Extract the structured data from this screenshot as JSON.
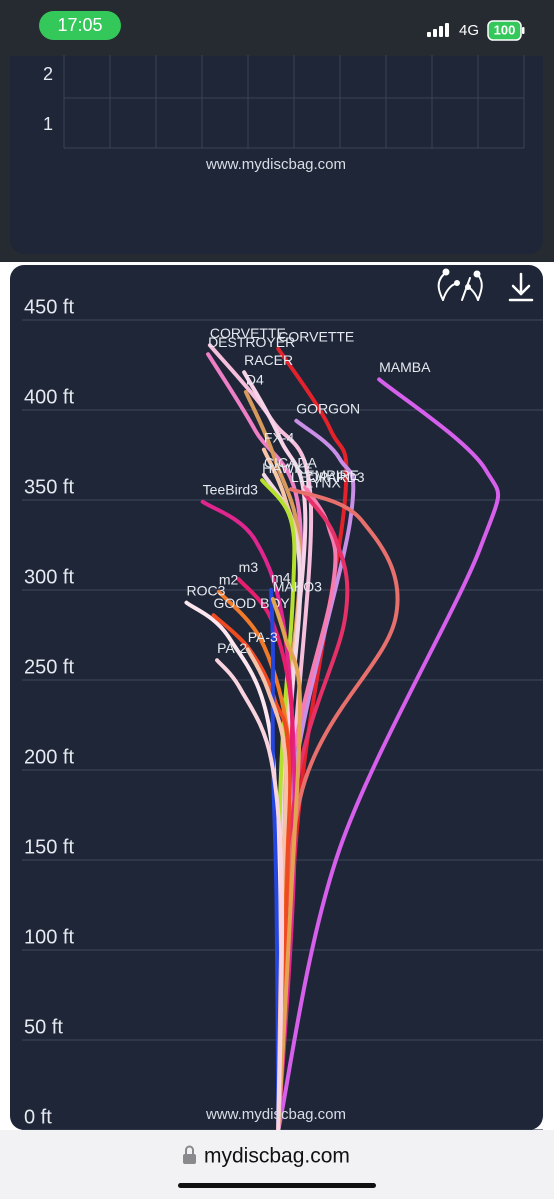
{
  "status_bar": {
    "time": "17:05",
    "network": "4G",
    "battery": "100"
  },
  "chart_data": [
    {
      "type": "grid",
      "yticks": [
        1,
        2
      ],
      "ylim": [
        0.55,
        2.4
      ],
      "watermark": "www.mydiscbag.com"
    },
    {
      "type": "flight",
      "watermark": "www.mydiscbag.com",
      "ylim": [
        0,
        450
      ],
      "yticks": [
        {
          "value": 0,
          "label": "0 ft"
        },
        {
          "value": 50,
          "label": "50 ft"
        },
        {
          "value": 100,
          "label": "100 ft"
        },
        {
          "value": 150,
          "label": "150 ft"
        },
        {
          "value": 200,
          "label": "200 ft"
        },
        {
          "value": 250,
          "label": "250 ft"
        },
        {
          "value": 300,
          "label": "300 ft"
        },
        {
          "value": 350,
          "label": "350 ft"
        },
        {
          "value": 400,
          "label": "400 ft"
        },
        {
          "value": 450,
          "label": "450 ft"
        }
      ],
      "xlim": [
        -149,
        147
      ],
      "grid": true,
      "series": [
        {
          "name": "MAMBA",
          "color": "#d660ec",
          "x": [
            0,
            34,
            112,
            115,
            56
          ],
          "values": [
            0,
            156,
            323,
            367,
            417
          ]
        },
        {
          "name": "CORVETTE",
          "color": "#e3222c",
          "x": [
            0,
            12,
            37,
            29,
            0
          ],
          "values": [
            0,
            184,
            350,
            389,
            434
          ]
        },
        {
          "name": "CORVETTE",
          "color": "#f6bfdc",
          "x": [
            0,
            7,
            18,
            -4,
            -38
          ],
          "values": [
            0,
            184,
            350,
            395,
            436
          ]
        },
        {
          "name": "DESTROYER",
          "color": "#ee7fc4",
          "x": [
            0,
            4,
            12,
            -13,
            -39
          ],
          "values": [
            0,
            184,
            339,
            389,
            431
          ]
        },
        {
          "name": "RACER",
          "color": "#f8d2e6",
          "x": [
            0,
            2,
            15,
            1,
            -19
          ],
          "values": [
            0,
            184,
            339,
            384,
            421
          ]
        },
        {
          "name": "D4",
          "color": "#d79a5c",
          "x": [
            0,
            1,
            12,
            -2,
            -18
          ],
          "values": [
            0,
            184,
            317,
            373,
            410
          ]
        },
        {
          "name": "GORGON",
          "color": "#c98ee6",
          "x": [
            0,
            7,
            40,
            34,
            10
          ],
          "values": [
            0,
            184,
            339,
            373,
            394
          ]
        },
        {
          "name": "FX-4",
          "color": "#f5c6a8",
          "x": [
            0,
            2,
            12,
            4,
            -8
          ],
          "values": [
            0,
            184,
            306,
            350,
            378
          ]
        },
        {
          "name": "CICADA",
          "color": "#f2d7e6",
          "x": [
            0,
            3,
            12,
            7,
            -8
          ],
          "values": [
            0,
            184,
            295,
            339,
            364
          ]
        },
        {
          "name": "HAWKE",
          "color": "#b5e02e",
          "x": [
            0,
            1,
            8,
            7,
            -9
          ],
          "values": [
            0,
            184,
            295,
            339,
            361
          ]
        },
        {
          "name": "EMPIRE",
          "color": "#f47cb0",
          "x": [
            0,
            5,
            30,
            28,
            15
          ],
          "values": [
            0,
            184,
            300,
            335,
            357
          ]
        },
        {
          "name": "LYNX",
          "color": "#e63068",
          "x": [
            0,
            9,
            37,
            32,
            15
          ],
          "values": [
            0,
            184,
            284,
            328,
            353
          ]
        },
        {
          "name": "LEOPARD3",
          "color": "#e8706c",
          "x": [
            0,
            12,
            65,
            46,
            7
          ],
          "values": [
            0,
            184,
            284,
            339,
            356
          ]
        },
        {
          "name": "TeeBird3",
          "color": "#e0268e",
          "x": [
            0,
            9,
            4,
            -13,
            -42
          ],
          "values": [
            0,
            156,
            273,
            328,
            349
          ]
        },
        {
          "name": "m3",
          "color": "#e61e6e",
          "x": [
            0,
            6,
            7,
            -4,
            -22
          ],
          "values": [
            0,
            184,
            239,
            284,
            306
          ]
        },
        {
          "name": "m2",
          "color": "#f07a2a",
          "x": [
            0,
            4,
            4,
            -10,
            -33
          ],
          "values": [
            0,
            184,
            228,
            273,
            299
          ]
        },
        {
          "name": "ROC3",
          "color": "#fde6ee",
          "x": [
            0,
            0,
            -4,
            -27,
            -51
          ],
          "values": [
            0,
            73,
            217,
            273,
            293
          ]
        },
        {
          "name": "GOOD BOY",
          "color": "#f04a22",
          "x": [
            0,
            6,
            -2,
            -16,
            -36
          ],
          "values": [
            0,
            195,
            239,
            267,
            286
          ]
        },
        {
          "name": "m4",
          "color": "#2446e0",
          "x": [
            0,
            -1,
            -3,
            -3,
            -4
          ],
          "values": [
            0,
            128,
            206,
            267,
            300
          ]
        },
        {
          "name": "MAKO3",
          "color": "#e3a452",
          "x": [
            0,
            7,
            12,
            4,
            -3
          ],
          "values": [
            0,
            128,
            239,
            273,
            295
          ]
        },
        {
          "name": "PA-3",
          "color": "#f6c2aa",
          "x": [
            0,
            2,
            4,
            -6,
            -17
          ],
          "values": [
            0,
            128,
            206,
            245,
            267
          ]
        },
        {
          "name": "PA-2",
          "color": "#f9d3de",
          "x": [
            0,
            2,
            -4,
            -21,
            -34
          ],
          "values": [
            0,
            128,
            206,
            245,
            261
          ]
        }
      ]
    }
  ],
  "address_bar": {
    "url": "mydiscbag.com"
  }
}
